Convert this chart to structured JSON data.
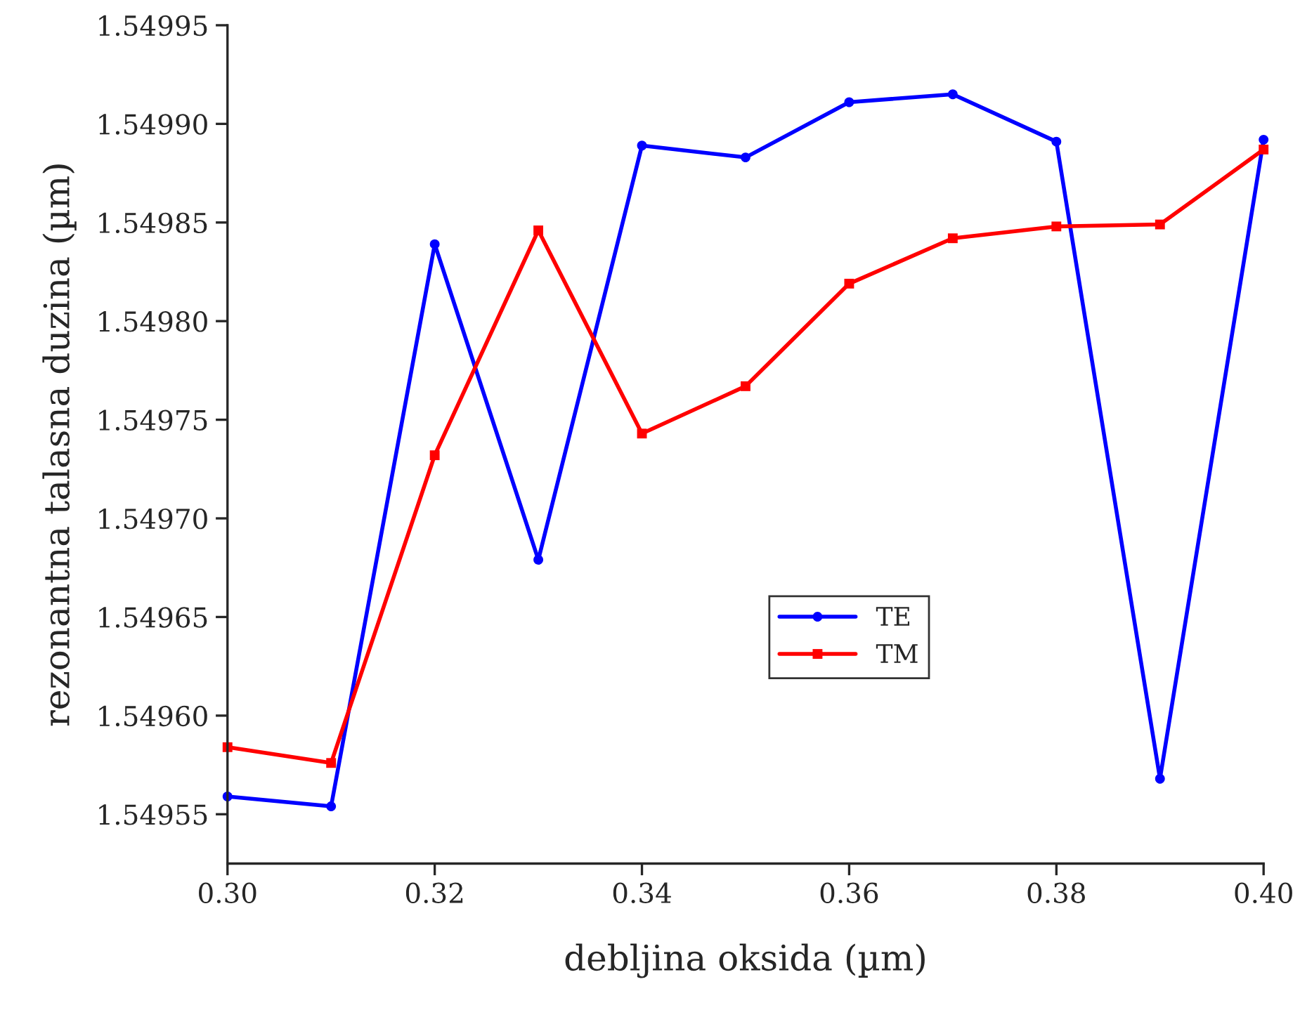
{
  "chart_data": {
    "type": "line",
    "xlabel": "debljina oksida (µm)",
    "ylabel": "rezonantna talasna duzina (µm)",
    "x": [
      0.3,
      0.31,
      0.32,
      0.33,
      0.34,
      0.35,
      0.36,
      0.37,
      0.38,
      0.39,
      0.4
    ],
    "series": [
      {
        "name": "TE",
        "color": "#0000ff",
        "marker": "circle",
        "values": [
          1.549559,
          1.549554,
          1.549839,
          1.549679,
          1.549889,
          1.549883,
          1.549911,
          1.549915,
          1.549891,
          1.549568,
          1.549892
        ]
      },
      {
        "name": "TM",
        "color": "#ff0000",
        "marker": "square",
        "values": [
          1.549584,
          1.549576,
          1.549732,
          1.549846,
          1.549743,
          1.549767,
          1.549819,
          1.549842,
          1.549848,
          1.549849,
          1.549887
        ]
      }
    ],
    "xlim": [
      0.3,
      0.4
    ],
    "xticks": [
      {
        "value": 0.3,
        "label": "0.30"
      },
      0.32,
      0.34,
      0.36,
      0.38,
      {
        "value": 0.4,
        "label": "0.40"
      }
    ],
    "ylim": [
      1.549525,
      1.54995
    ],
    "yticks": [
      1.54955,
      {
        "value": 1.5496,
        "label": "1.54960"
      },
      1.54965,
      {
        "value": 1.5497,
        "label": "1.54970"
      },
      1.54975,
      {
        "value": 1.5498,
        "label": "1.54980"
      },
      1.54985,
      {
        "value": 1.5499,
        "label": "1.54990"
      },
      1.54995
    ],
    "grid": false,
    "legend": "center right",
    "line_style": "solid"
  }
}
